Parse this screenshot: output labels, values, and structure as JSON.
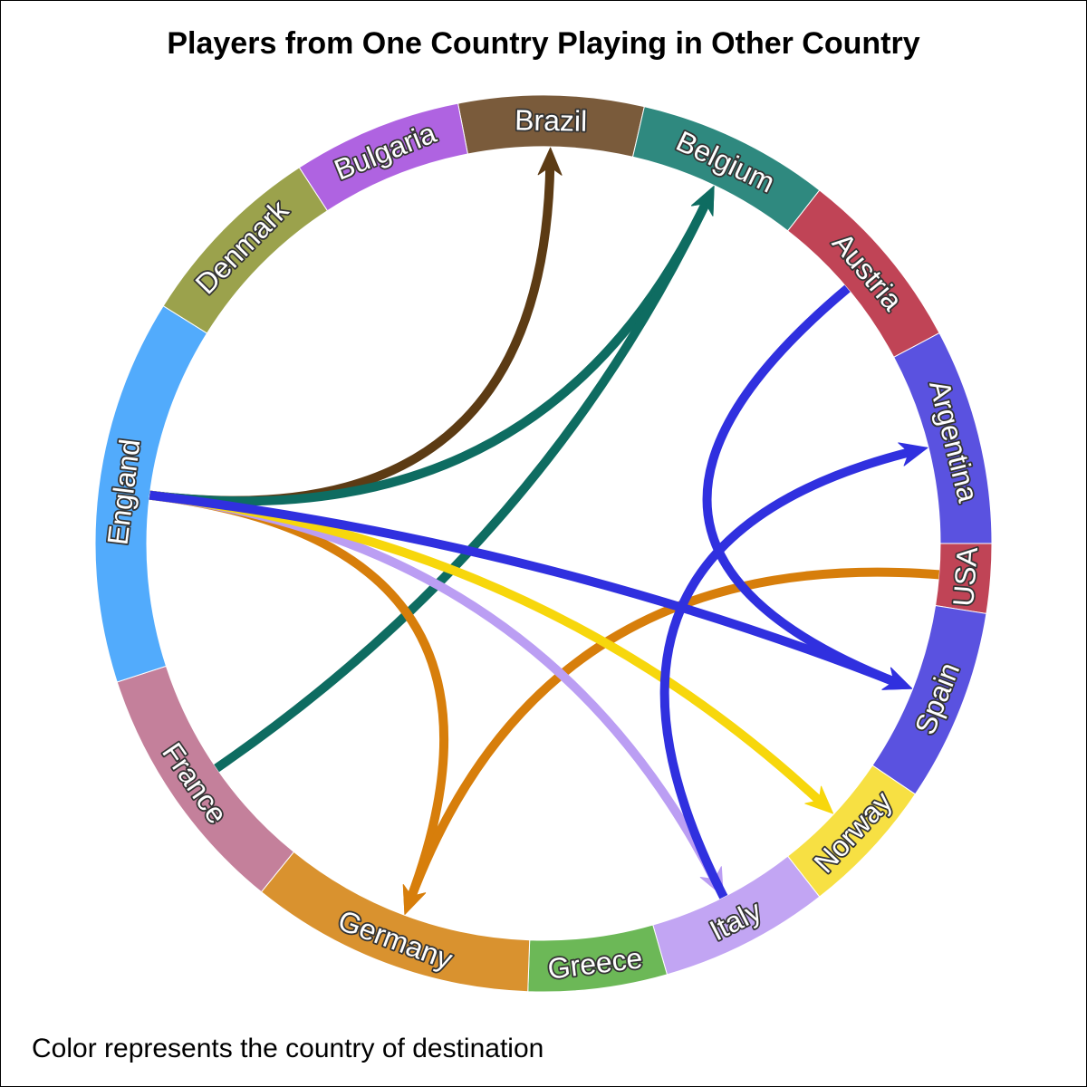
{
  "chart_data": {
    "type": "chord",
    "title": "Players from One Country Playing in Other Country",
    "footnote": "Color represents the country of destination",
    "nodes": [
      {
        "name": "Brazil",
        "color": "#7a5b3b"
      },
      {
        "name": "Belgium",
        "color": "#2f897f"
      },
      {
        "name": "Austria",
        "color": "#c04456"
      },
      {
        "name": "Argentina",
        "color": "#5a52e0"
      },
      {
        "name": "USA",
        "color": "#c04456"
      },
      {
        "name": "Spain",
        "color": "#5a52e0"
      },
      {
        "name": "Norway",
        "color": "#f7e043"
      },
      {
        "name": "Italy",
        "color": "#c2a5f3"
      },
      {
        "name": "Greece",
        "color": "#6cb857"
      },
      {
        "name": "Germany",
        "color": "#d9922f"
      },
      {
        "name": "France",
        "color": "#c4809b"
      },
      {
        "name": "England",
        "color": "#52abfc"
      },
      {
        "name": "Denmark",
        "color": "#9ba24c"
      },
      {
        "name": "Bulgaria",
        "color": "#af63e1"
      }
    ],
    "links": [
      {
        "source": "England",
        "target": "Brazil",
        "color": "#5c3b14"
      },
      {
        "source": "England",
        "target": "Belgium",
        "color": "#0e6c61"
      },
      {
        "source": "France",
        "target": "Belgium",
        "color": "#0e6c61"
      },
      {
        "source": "England",
        "target": "Germany",
        "color": "#d77e0b"
      },
      {
        "source": "USA",
        "target": "Germany",
        "color": "#d77e0b"
      },
      {
        "source": "England",
        "target": "Italy",
        "color": "#bb9ef3"
      },
      {
        "source": "England",
        "target": "Norway",
        "color": "#f7d70c"
      },
      {
        "source": "Austria",
        "target": "Spain",
        "color": "#3030df"
      },
      {
        "source": "England",
        "target": "Spain",
        "color": "#3030df"
      },
      {
        "source": "Italy",
        "target": "Argentina",
        "color": "#3030df"
      }
    ]
  }
}
